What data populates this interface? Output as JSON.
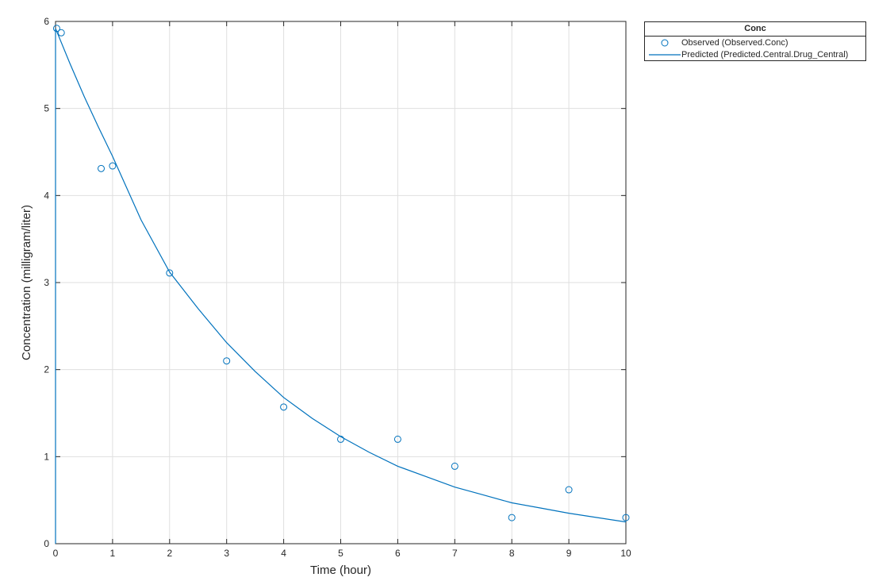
{
  "chart_data": {
    "type": "scatter",
    "xlabel": "Time (hour)",
    "ylabel": "Concentration (milligram/liter)",
    "xlim": [
      0,
      10
    ],
    "ylim": [
      0,
      6
    ],
    "xticks": [
      "0",
      "1",
      "2",
      "3",
      "4",
      "5",
      "6",
      "7",
      "8",
      "9",
      "10"
    ],
    "yticks": [
      "0",
      "1",
      "2",
      "3",
      "4",
      "5",
      "6"
    ],
    "grid": true,
    "legend_position": "outside top-right",
    "legend_title": "Conc",
    "series": [
      {
        "name": "Observed (Observed.Conc)",
        "type": "scatter",
        "marker": "circle",
        "color": "#0072BD",
        "x": [
          0.02,
          0.1,
          0.8,
          1.0,
          2.0,
          3.0,
          4.0,
          5.0,
          6.0,
          7.0,
          8.0,
          9.0,
          10.0
        ],
        "y": [
          5.92,
          5.87,
          4.31,
          4.34,
          3.11,
          2.1,
          1.57,
          1.2,
          1.2,
          0.89,
          0.3,
          0.62,
          0.3
        ]
      },
      {
        "name": "Predicted (Predicted.Central.Drug_Central)",
        "type": "line",
        "color": "#0072BD",
        "x": [
          0,
          0,
          0.25,
          0.5,
          0.75,
          1.0,
          1.5,
          2.0,
          2.5,
          3.0,
          3.5,
          4.0,
          4.5,
          5.0,
          5.5,
          6.0,
          6.5,
          7.0,
          7.5,
          8.0,
          8.5,
          9.0,
          9.5,
          10.0
        ],
        "y": [
          0,
          5.92,
          5.52,
          5.14,
          4.79,
          4.45,
          3.72,
          3.12,
          2.7,
          2.31,
          1.98,
          1.68,
          1.44,
          1.23,
          1.05,
          0.89,
          0.77,
          0.65,
          0.56,
          0.47,
          0.41,
          0.35,
          0.3,
          0.25
        ]
      }
    ]
  }
}
